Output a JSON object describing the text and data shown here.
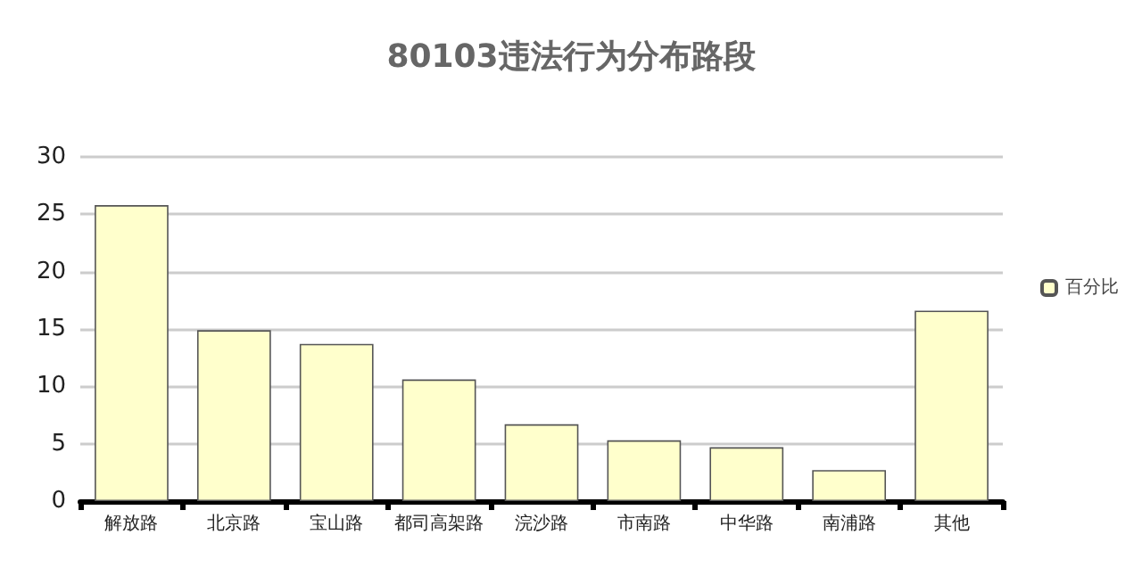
{
  "chart_data": {
    "type": "bar",
    "title": "80103违法行为分布路段",
    "categories": [
      "解放路",
      "北京路",
      "宝山路",
      "都司高架路",
      "浣沙路",
      "市南路",
      "中华路",
      "南浦路",
      "其他"
    ],
    "series": [
      {
        "name": "百分比",
        "color": "#ffffcc",
        "values": [
          25.8,
          14.9,
          13.7,
          10.6,
          6.7,
          5.3,
          4.7,
          2.7,
          16.6
        ]
      }
    ],
    "ylim": [
      0,
      30
    ],
    "yticks": [
      0,
      5,
      10,
      15,
      20,
      25,
      30
    ],
    "grid": "y",
    "legend": "right"
  }
}
